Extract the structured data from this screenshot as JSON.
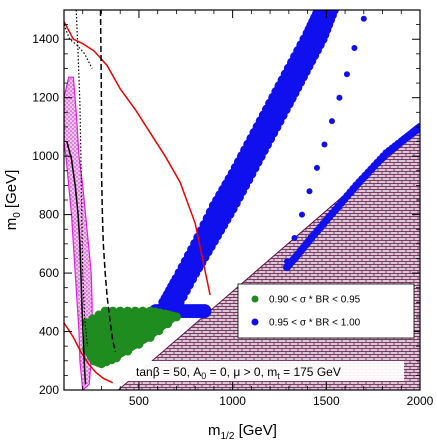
{
  "chart_data": {
    "type": "scatter",
    "xlabel_main": "m",
    "xlabel_sub": "1/2",
    "xlabel_unit": " [GeV]",
    "ylabel_main": "m",
    "ylabel_sub": "0",
    "ylabel_unit": " [GeV]",
    "xlim": [
      100,
      2000
    ],
    "ylim": [
      200,
      1500
    ],
    "xticks": [
      500,
      1000,
      1500,
      2000
    ],
    "yticks": [
      200,
      400,
      600,
      800,
      1000,
      1200,
      1400
    ],
    "annotation": {
      "tan": "tan",
      "beta": "β",
      "eq1": " = 50, A",
      "sub0": "0",
      "eq2": " = 0, μ > 0, m",
      "subt": "t",
      "eq3": " = 175 GeV"
    },
    "legend": {
      "placement": "center-right",
      "entries": [
        {
          "text": "0.90 < σ * BR < 0.95",
          "color": "#1f8c1f"
        },
        {
          "text": "0.95 < σ * BR < 1.00",
          "color": "#1010ee"
        }
      ]
    },
    "colors": {
      "green": "#1f8c1f",
      "blue": "#1010ee",
      "red_line": "#ee0000",
      "magenta": "#e020e0",
      "hatch_fill": "#d8c0d0",
      "hatch_line": "#5a1040"
    },
    "excluded_boundary": [
      [
        100,
        200
      ],
      [
        390,
        200
      ],
      [
        2000,
        1090
      ],
      [
        2000,
        200
      ]
    ],
    "curves": {
      "red": [
        [
          100,
          1460
        ],
        [
          150,
          1400
        ],
        [
          200,
          1385
        ],
        [
          260,
          1360
        ],
        [
          330,
          1310
        ],
        [
          400,
          1230
        ],
        [
          480,
          1160
        ],
        [
          560,
          1080
        ],
        [
          640,
          1000
        ],
        [
          720,
          910
        ],
        [
          800,
          770
        ],
        [
          880,
          525
        ]
      ],
      "red_lower": [
        [
          100,
          430
        ],
        [
          150,
          380
        ],
        [
          190,
          330
        ],
        [
          230,
          290
        ],
        [
          270,
          260
        ],
        [
          310,
          240
        ],
        [
          360,
          225
        ]
      ],
      "black_solid": [
        [
          115,
          1050
        ],
        [
          140,
          990
        ],
        [
          160,
          900
        ],
        [
          175,
          800
        ],
        [
          185,
          700
        ],
        [
          190,
          600
        ],
        [
          195,
          500
        ],
        [
          200,
          420
        ],
        [
          205,
          340
        ],
        [
          210,
          270
        ],
        [
          215,
          220
        ]
      ],
      "black_dashed": [
        [
          295,
          1500
        ],
        [
          298,
          1320
        ],
        [
          300,
          1150
        ],
        [
          300,
          950
        ],
        [
          305,
          800
        ],
        [
          310,
          700
        ],
        [
          320,
          600
        ],
        [
          330,
          520
        ],
        [
          345,
          440
        ],
        [
          360,
          370
        ],
        [
          375,
          330
        ]
      ],
      "black_dotted": [
        [
          165,
          1500
        ],
        [
          175,
          1350
        ],
        [
          185,
          1180
        ],
        [
          190,
          1000
        ],
        [
          195,
          800
        ],
        [
          200,
          600
        ],
        [
          210,
          450
        ],
        [
          225,
          350
        ]
      ],
      "black_dotted2": [
        [
          100,
          1450
        ],
        [
          130,
          1400
        ],
        [
          170,
          1380
        ],
        [
          210,
          1350
        ],
        [
          250,
          1300
        ]
      ],
      "magenta_band": [
        [
          100,
          1200
        ],
        [
          125,
          1270
        ],
        [
          150,
          1270
        ],
        [
          165,
          1150
        ],
        [
          180,
          1000
        ],
        [
          200,
          900
        ],
        [
          230,
          700
        ],
        [
          245,
          600
        ],
        [
          250,
          500
        ],
        [
          250,
          350
        ],
        [
          235,
          220
        ],
        [
          200,
          200
        ],
        [
          185,
          300
        ],
        [
          180,
          400
        ],
        [
          160,
          600
        ],
        [
          140,
          800
        ],
        [
          110,
          1000
        ],
        [
          100,
          1050
        ]
      ]
    },
    "green_region": [
      [
        220,
        430
      ],
      [
        320,
        470
      ],
      [
        440,
        470
      ],
      [
        560,
        470
      ],
      [
        640,
        460
      ],
      [
        700,
        450
      ],
      [
        560,
        380
      ],
      [
        380,
        310
      ],
      [
        300,
        290
      ],
      [
        260,
        300
      ],
      [
        220,
        340
      ]
    ],
    "blue_band_upper_outer": [
      [
        630,
        500
      ],
      [
        700,
        580
      ],
      [
        800,
        700
      ],
      [
        900,
        830
      ],
      [
        1000,
        940
      ],
      [
        1100,
        1060
      ],
      [
        1200,
        1180
      ],
      [
        1300,
        1300
      ],
      [
        1400,
        1420
      ],
      [
        1460,
        1500
      ]
    ],
    "blue_band_upper_inner": [
      [
        1540,
        1500
      ],
      [
        1480,
        1400
      ],
      [
        1390,
        1290
      ],
      [
        1300,
        1180
      ],
      [
        1200,
        1060
      ],
      [
        1100,
        940
      ],
      [
        1000,
        820
      ],
      [
        900,
        710
      ],
      [
        800,
        600
      ],
      [
        700,
        480
      ]
    ],
    "blue_band_lower": [
      [
        590,
        470
      ],
      [
        650,
        470
      ],
      [
        720,
        470
      ],
      [
        790,
        470
      ],
      [
        850,
        470
      ]
    ],
    "blue_dots_curve": [
      [
        1290,
        640
      ],
      [
        1330,
        720
      ],
      [
        1370,
        800
      ],
      [
        1410,
        880
      ],
      [
        1450,
        960
      ],
      [
        1490,
        1040
      ],
      [
        1530,
        1120
      ],
      [
        1570,
        1200
      ],
      [
        1610,
        1280
      ],
      [
        1650,
        1370
      ],
      [
        1700,
        1470
      ]
    ],
    "blue_dots_edge": [
      [
        1290,
        620
      ],
      [
        1350,
        665
      ],
      [
        1420,
        720
      ],
      [
        1500,
        780
      ],
      [
        1580,
        840
      ],
      [
        1660,
        900
      ],
      [
        1740,
        955
      ],
      [
        1820,
        1010
      ],
      [
        1900,
        1050
      ],
      [
        1960,
        1080
      ],
      [
        2000,
        1100
      ]
    ]
  }
}
